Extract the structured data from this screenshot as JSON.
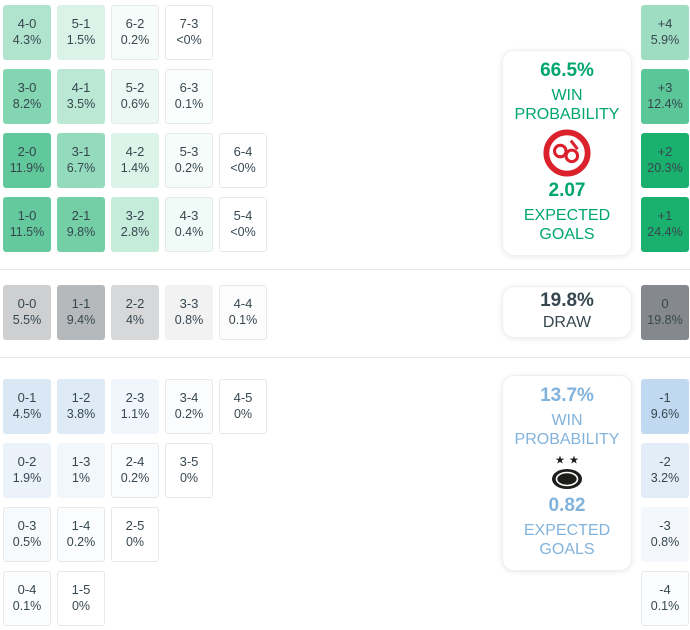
{
  "colors": {
    "green": {
      "hex": "#1ab06e",
      "rgb": [
        26,
        176,
        110
      ]
    },
    "gray": {
      "hex": "#84888c",
      "rgb": [
        132,
        136,
        140
      ]
    },
    "blue": {
      "hex": "#96bee6",
      "rgb": [
        150,
        190,
        230
      ]
    },
    "green_text": "#00a76d",
    "dark_text": "#37474f",
    "blue_text": "#82b3dc",
    "home_logo_red": "#da212c",
    "away_logo_black": "#1d1d1b"
  },
  "chart_data": {
    "type": "heatmap",
    "unit": "%",
    "sections": {
      "home": {
        "rows": [
          [
            {
              "score": "4-0",
              "pct": "4.3%",
              "v": 4.3
            },
            {
              "score": "5-1",
              "pct": "1.5%",
              "v": 1.5
            },
            {
              "score": "6-2",
              "pct": "0.2%",
              "v": 0.2
            },
            {
              "score": "7-3",
              "pct": "<0%",
              "v": 0
            }
          ],
          [
            {
              "score": "3-0",
              "pct": "8.2%",
              "v": 8.2
            },
            {
              "score": "4-1",
              "pct": "3.5%",
              "v": 3.5
            },
            {
              "score": "5-2",
              "pct": "0.6%",
              "v": 0.6
            },
            {
              "score": "6-3",
              "pct": "0.1%",
              "v": 0.1
            }
          ],
          [
            {
              "score": "2-0",
              "pct": "11.9%",
              "v": 11.9
            },
            {
              "score": "3-1",
              "pct": "6.7%",
              "v": 6.7
            },
            {
              "score": "4-2",
              "pct": "1.4%",
              "v": 1.4
            },
            {
              "score": "5-3",
              "pct": "0.2%",
              "v": 0.2
            },
            {
              "score": "6-4",
              "pct": "<0%",
              "v": 0
            }
          ],
          [
            {
              "score": "1-0",
              "pct": "11.5%",
              "v": 11.5
            },
            {
              "score": "2-1",
              "pct": "9.8%",
              "v": 9.8
            },
            {
              "score": "3-2",
              "pct": "2.8%",
              "v": 2.8
            },
            {
              "score": "4-3",
              "pct": "0.4%",
              "v": 0.4
            },
            {
              "score": "5-4",
              "pct": "<0%",
              "v": 0
            }
          ]
        ],
        "panel": {
          "probability": "66.5%",
          "probability_label": "WIN PROBABILITY",
          "expected": "2.07",
          "expected_label": "EXPECTED GOALS"
        },
        "margins": [
          {
            "label": "+4",
            "pct": "5.9%",
            "v": 5.9
          },
          {
            "label": "+3",
            "pct": "12.4%",
            "v": 12.4
          },
          {
            "label": "+2",
            "pct": "20.3%",
            "v": 20.3
          },
          {
            "label": "+1",
            "pct": "24.4%",
            "v": 24.4
          }
        ]
      },
      "draw": {
        "rows": [
          [
            {
              "score": "0-0",
              "pct": "5.5%",
              "v": 5.5
            },
            {
              "score": "1-1",
              "pct": "9.4%",
              "v": 9.4
            },
            {
              "score": "2-2",
              "pct": "4%",
              "v": 4
            },
            {
              "score": "3-3",
              "pct": "0.8%",
              "v": 0.8
            },
            {
              "score": "4-4",
              "pct": "0.1%",
              "v": 0.1
            }
          ]
        ],
        "panel": {
          "probability": "19.8%",
          "label": "DRAW"
        },
        "margins": [
          {
            "label": "0",
            "pct": "19.8%",
            "v": 19.8
          }
        ]
      },
      "away": {
        "rows": [
          [
            {
              "score": "0-1",
              "pct": "4.5%",
              "v": 4.5
            },
            {
              "score": "1-2",
              "pct": "3.8%",
              "v": 3.8
            },
            {
              "score": "2-3",
              "pct": "1.1%",
              "v": 1.1
            },
            {
              "score": "3-4",
              "pct": "0.2%",
              "v": 0.2
            },
            {
              "score": "4-5",
              "pct": "0%",
              "v": 0
            }
          ],
          [
            {
              "score": "0-2",
              "pct": "1.9%",
              "v": 1.9
            },
            {
              "score": "1-3",
              "pct": "1%",
              "v": 1
            },
            {
              "score": "2-4",
              "pct": "0.2%",
              "v": 0.2
            },
            {
              "score": "3-5",
              "pct": "0%",
              "v": 0
            }
          ],
          [
            {
              "score": "0-3",
              "pct": "0.5%",
              "v": 0.5
            },
            {
              "score": "1-4",
              "pct": "0.2%",
              "v": 0.2
            },
            {
              "score": "2-5",
              "pct": "0%",
              "v": 0
            }
          ],
          [
            {
              "score": "0-4",
              "pct": "0.1%",
              "v": 0.1
            },
            {
              "score": "1-5",
              "pct": "0%",
              "v": 0
            }
          ]
        ],
        "panel": {
          "probability": "13.7%",
          "probability_label": "WIN PROBABILITY",
          "expected": "0.82",
          "expected_label": "EXPECTED GOALS"
        },
        "margins": [
          {
            "label": "-1",
            "pct": "9.6%",
            "v": 9.6
          },
          {
            "label": "-2",
            "pct": "3.2%",
            "v": 3.2
          },
          {
            "label": "-3",
            "pct": "0.8%",
            "v": 0.8
          },
          {
            "label": "-4",
            "pct": "0.1%",
            "v": 0.1
          }
        ]
      }
    }
  }
}
